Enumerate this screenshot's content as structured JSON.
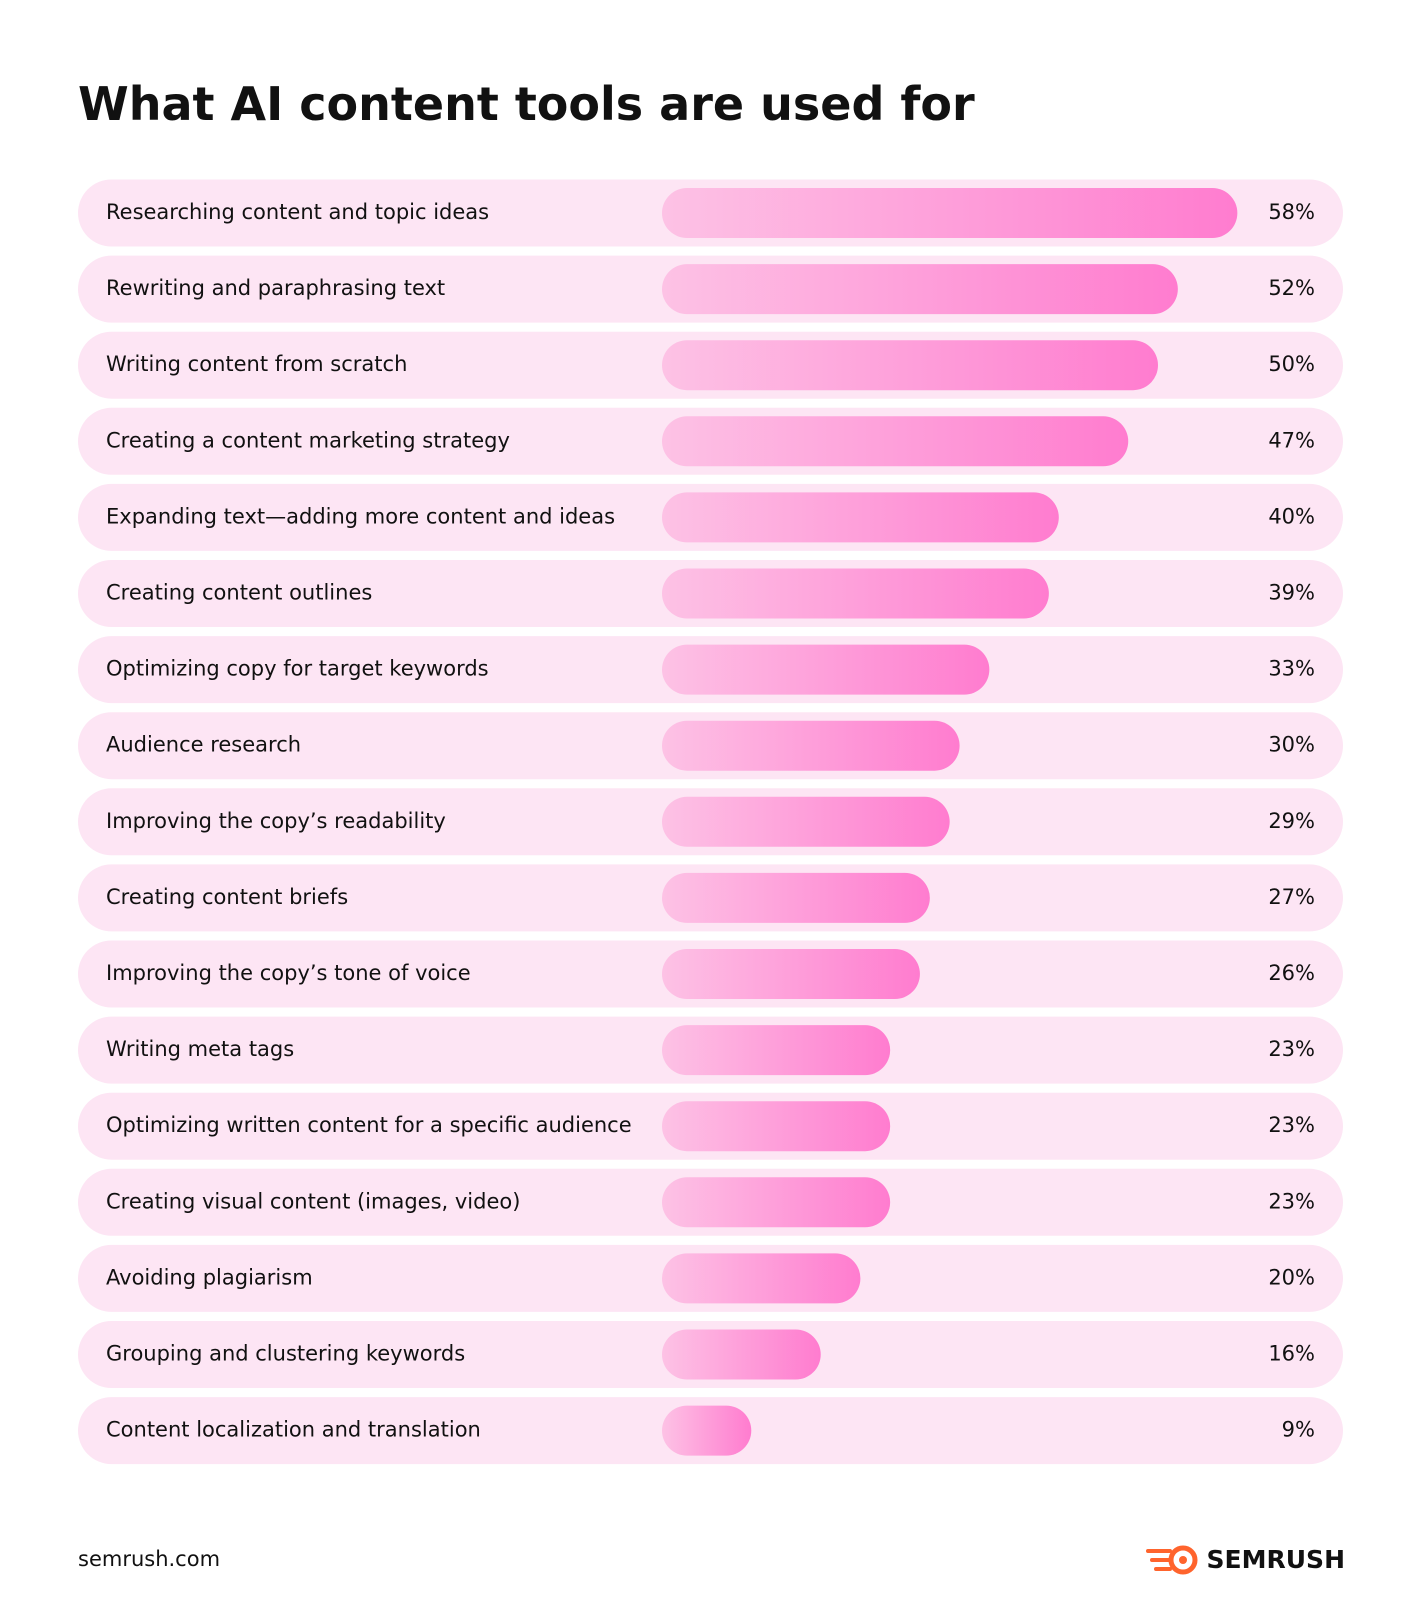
{
  "chart_data": {
    "type": "bar",
    "orientation": "horizontal",
    "title": "What AI content tools are used for",
    "categories": [
      "Researching content and topic ideas",
      "Rewriting and paraphrasing text",
      "Writing content from scratch",
      "Creating a content marketing strategy",
      "Expanding text—adding more content and ideas",
      "Creating content outlines",
      "Optimizing copy for target keywords",
      "Audience research",
      "Improving the copy’s readability",
      "Creating content briefs",
      "Improving the copy’s tone of voice",
      "Writing meta tags",
      "Optimizing written content for a specific audience",
      "Creating visual content (images, video)",
      "Avoiding plagiarism",
      "Grouping and clustering keywords",
      "Content localization and translation"
    ],
    "values": [
      58,
      52,
      50,
      47,
      40,
      39,
      33,
      30,
      29,
      27,
      26,
      23,
      23,
      23,
      20,
      16,
      9
    ],
    "value_labels": [
      "58%",
      "52%",
      "50%",
      "47%",
      "40%",
      "39%",
      "33%",
      "30%",
      "29%",
      "27%",
      "26%",
      "23%",
      "23%",
      "23%",
      "20%",
      "16%",
      "9%"
    ],
    "color": "#ff7ccf",
    "source": "semrush.com",
    "logo": "SEMRUSH"
  }
}
